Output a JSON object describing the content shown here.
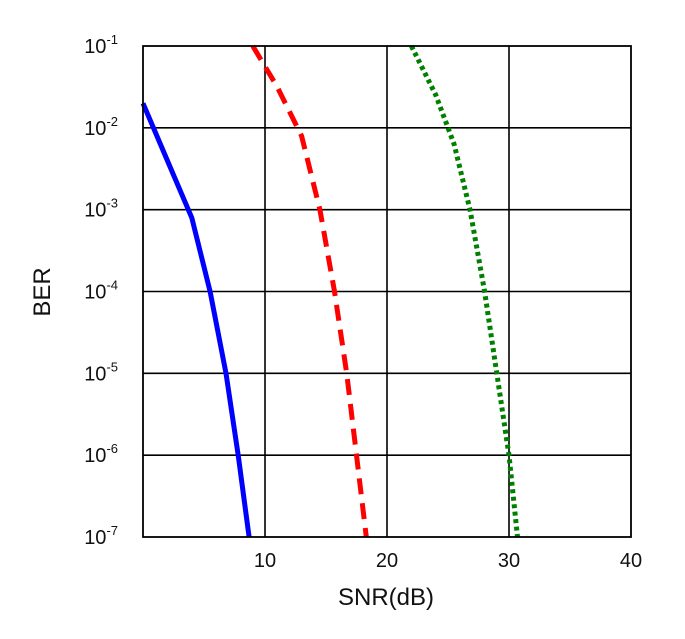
{
  "chart_data": {
    "type": "line",
    "title": "",
    "xlabel": "SNR(dB)",
    "ylabel": "BER",
    "xlim": [
      0,
      40
    ],
    "ylim_log10": [
      -7,
      -1
    ],
    "yscale": "log",
    "grid": true,
    "x_ticks": [
      {
        "value": 10,
        "label": "10"
      },
      {
        "value": 20,
        "label": "20"
      },
      {
        "value": 30,
        "label": "30"
      },
      {
        "value": 40,
        "label": "40"
      }
    ],
    "y_ticks": [
      {
        "exp": -1,
        "base": "10",
        "power": "-1"
      },
      {
        "exp": -2,
        "base": "10",
        "power": "-2"
      },
      {
        "exp": -3,
        "base": "10",
        "power": "-3"
      },
      {
        "exp": -4,
        "base": "10",
        "power": "-4"
      },
      {
        "exp": -5,
        "base": "10",
        "power": "-5"
      },
      {
        "exp": -6,
        "base": "10",
        "power": "-6"
      },
      {
        "exp": -7,
        "base": "10",
        "power": "-7"
      }
    ],
    "series": [
      {
        "name": "blue-solid",
        "color": "#0000ff",
        "dash": "solid",
        "points": [
          [
            0,
            -1.7
          ],
          [
            2,
            -2.4
          ],
          [
            4,
            -3.1
          ],
          [
            5.5,
            -4.0
          ],
          [
            6.8,
            -5.0
          ],
          [
            7.8,
            -6.0
          ],
          [
            8.7,
            -7.0
          ]
        ]
      },
      {
        "name": "red-dashed",
        "color": "#ff0000",
        "dash": "dashed",
        "points": [
          [
            9,
            -1.0
          ],
          [
            11,
            -1.5
          ],
          [
            13,
            -2.1
          ],
          [
            14.5,
            -3.0
          ],
          [
            15.7,
            -4.0
          ],
          [
            16.7,
            -5.0
          ],
          [
            17.5,
            -6.0
          ],
          [
            18.3,
            -7.0
          ]
        ]
      },
      {
        "name": "green-dotted",
        "color": "#008000",
        "dash": "dotted",
        "points": [
          [
            22,
            -1.0
          ],
          [
            24,
            -1.6
          ],
          [
            25.5,
            -2.2
          ],
          [
            26.8,
            -3.0
          ],
          [
            28,
            -4.0
          ],
          [
            29,
            -5.0
          ],
          [
            30,
            -6.0
          ],
          [
            30.7,
            -7.0
          ]
        ]
      }
    ]
  }
}
